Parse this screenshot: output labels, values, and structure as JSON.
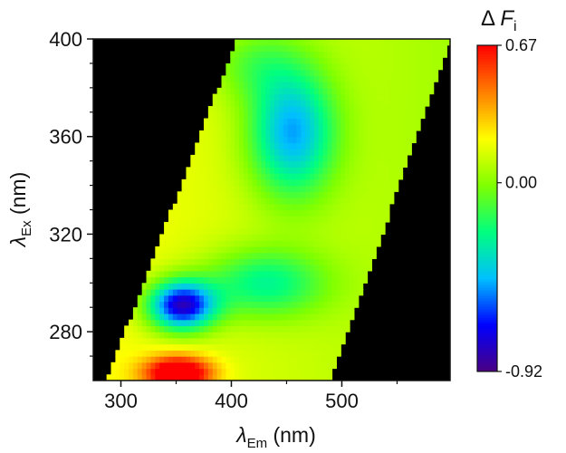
{
  "chart_data": {
    "type": "heatmap",
    "title": "",
    "x_axis": {
      "label_symbol": "λ",
      "label_sub": "Em",
      "label_unit": " (nm)",
      "range": [
        275,
        598
      ],
      "ticks": [
        300,
        400,
        500
      ],
      "tick_labels": [
        "300",
        "400",
        "500"
      ]
    },
    "y_axis": {
      "label_symbol": "λ",
      "label_sub": "Ex",
      "label_unit": " (nm)",
      "range": [
        260,
        400
      ],
      "ticks": [
        280,
        320,
        360,
        400
      ],
      "tick_labels": [
        "280",
        "320",
        "360",
        "400"
      ]
    },
    "colorbar": {
      "title_prefix": "Δ ",
      "title_symbol": "F",
      "title_sub": "i",
      "range": [
        -0.92,
        0.67
      ],
      "ticks": [
        0.67,
        0.0,
        -0.92
      ],
      "tick_labels": [
        "0.67",
        "0.00",
        "-0.92"
      ],
      "colormap": [
        "#4b0082",
        "#0000ff",
        "#00bfff",
        "#00ff7f",
        "#7fff00",
        "#ffff00",
        "#ff7f00",
        "#ff0000"
      ]
    },
    "no_data_color": "#000000",
    "valid_region": {
      "description_lower_bound_points": [
        [
          287,
          260
        ],
        [
          405,
          400
        ]
      ],
      "description_upper_bound_points": [
        [
          490,
          260
        ],
        [
          598,
          400
        ]
      ]
    },
    "features": [
      {
        "kind": "min",
        "x": 455,
        "y": 362,
        "value": -0.5
      },
      {
        "kind": "min",
        "x": 355,
        "y": 291,
        "value": -0.92
      },
      {
        "kind": "min",
        "x": 430,
        "y": 300,
        "value": -0.35
      },
      {
        "kind": "max",
        "x": 352,
        "y": 263,
        "value": 0.67
      }
    ]
  }
}
